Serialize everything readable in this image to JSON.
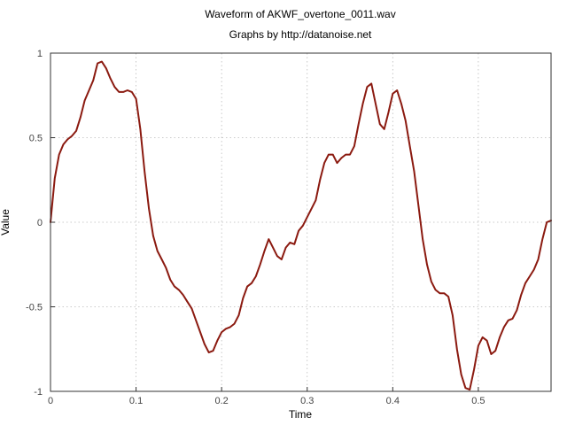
{
  "chart_data": {
    "type": "line",
    "title": "Waveform of AKWF_overtone_0011.wav",
    "subtitle": "Graphs by http://datanoise.net",
    "xlabel": "Time",
    "ylabel": "Value",
    "xlim": [
      0,
      0.585
    ],
    "ylim": [
      -1,
      1
    ],
    "xticks": [
      0,
      0.1,
      0.2,
      0.3,
      0.4,
      0.5
    ],
    "xtick_labels": [
      "0",
      "0.1",
      "0.2",
      "0.3",
      "0.4",
      "0.5"
    ],
    "yticks": [
      -1,
      -0.5,
      0,
      0.5,
      1
    ],
    "ytick_labels": [
      "-1",
      "-0.5",
      "0",
      "0.5",
      "1"
    ],
    "grid": true,
    "series": [
      {
        "color": "#8b1a10",
        "x": [
          0,
          0.005,
          0.01,
          0.015,
          0.02,
          0.025,
          0.03,
          0.035,
          0.04,
          0.045,
          0.05,
          0.055,
          0.06,
          0.065,
          0.07,
          0.075,
          0.08,
          0.085,
          0.09,
          0.095,
          0.1,
          0.105,
          0.11,
          0.115,
          0.12,
          0.125,
          0.13,
          0.135,
          0.14,
          0.145,
          0.15,
          0.155,
          0.16,
          0.165,
          0.17,
          0.175,
          0.18,
          0.185,
          0.19,
          0.195,
          0.2,
          0.205,
          0.21,
          0.215,
          0.22,
          0.225,
          0.23,
          0.235,
          0.24,
          0.245,
          0.25,
          0.255,
          0.26,
          0.265,
          0.27,
          0.275,
          0.28,
          0.285,
          0.29,
          0.295,
          0.3,
          0.305,
          0.31,
          0.315,
          0.32,
          0.325,
          0.33,
          0.335,
          0.34,
          0.345,
          0.35,
          0.355,
          0.36,
          0.365,
          0.37,
          0.375,
          0.38,
          0.385,
          0.39,
          0.395,
          0.4,
          0.405,
          0.41,
          0.415,
          0.42,
          0.425,
          0.43,
          0.435,
          0.44,
          0.445,
          0.45,
          0.455,
          0.46,
          0.465,
          0.47,
          0.475,
          0.48,
          0.485,
          0.49,
          0.495,
          0.5,
          0.505,
          0.51,
          0.515,
          0.52,
          0.525,
          0.53,
          0.535,
          0.54,
          0.545,
          0.55,
          0.555,
          0.56,
          0.565,
          0.57,
          0.575,
          0.58,
          0.585
        ],
        "y": [
          0.0,
          0.26,
          0.4,
          0.46,
          0.49,
          0.51,
          0.54,
          0.62,
          0.72,
          0.78,
          0.84,
          0.94,
          0.95,
          0.91,
          0.85,
          0.8,
          0.77,
          0.77,
          0.78,
          0.77,
          0.73,
          0.55,
          0.3,
          0.08,
          -0.08,
          -0.17,
          -0.22,
          -0.27,
          -0.34,
          -0.38,
          -0.4,
          -0.43,
          -0.47,
          -0.51,
          -0.58,
          -0.65,
          -0.72,
          -0.77,
          -0.76,
          -0.7,
          -0.65,
          -0.63,
          -0.62,
          -0.6,
          -0.55,
          -0.45,
          -0.38,
          -0.36,
          -0.32,
          -0.25,
          -0.17,
          -0.1,
          -0.15,
          -0.2,
          -0.22,
          -0.15,
          -0.12,
          -0.13,
          -0.05,
          -0.02,
          0.03,
          0.08,
          0.13,
          0.25,
          0.35,
          0.4,
          0.4,
          0.35,
          0.38,
          0.4,
          0.4,
          0.45,
          0.58,
          0.7,
          0.8,
          0.82,
          0.7,
          0.58,
          0.55,
          0.65,
          0.76,
          0.78,
          0.7,
          0.6,
          0.45,
          0.3,
          0.1,
          -0.1,
          -0.25,
          -0.35,
          -0.4,
          -0.42,
          -0.42,
          -0.44,
          -0.55,
          -0.75,
          -0.9,
          -0.98,
          -0.99,
          -0.87,
          -0.73,
          -0.68,
          -0.7,
          -0.78,
          -0.76,
          -0.68,
          -0.62,
          -0.58,
          -0.57,
          -0.52,
          -0.43,
          -0.36,
          -0.32,
          -0.28,
          -0.22,
          -0.1,
          0.0,
          0.01
        ]
      }
    ]
  }
}
